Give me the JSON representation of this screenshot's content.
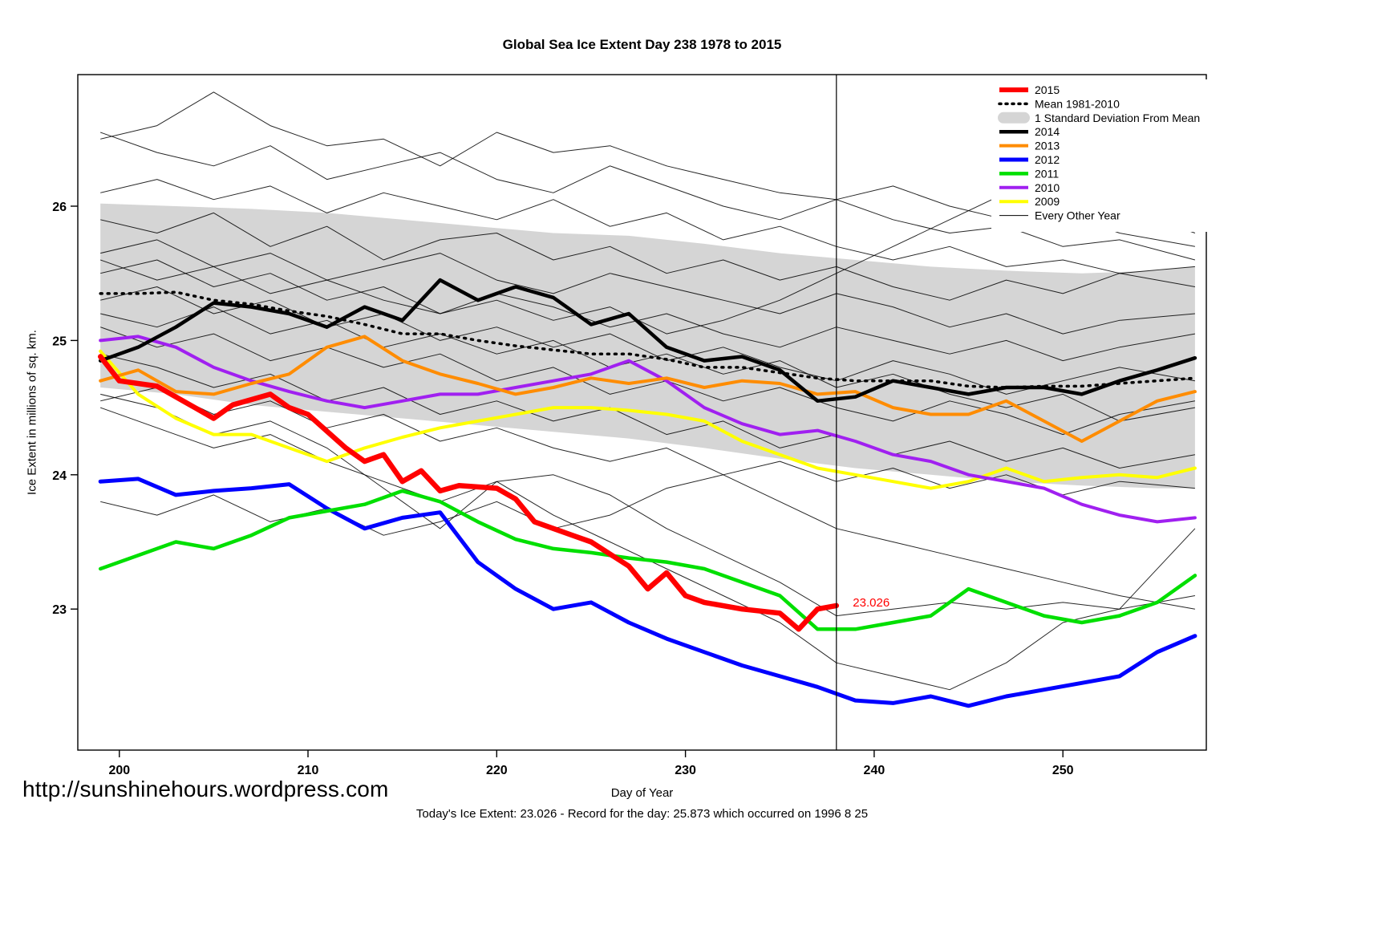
{
  "page": {
    "footer_url": "http://sunshinehours.wordpress.com",
    "footer_status": "Today's Ice Extent: 23.026  - Record for the day: 25.873 which occurred on 1996 8 25"
  },
  "chart_data": {
    "type": "line",
    "title": "Global Sea Ice Extent Day 238 1978 to 2015",
    "xlabel": "Day of Year",
    "ylabel": "Ice Extent in millions of sq. km.",
    "xlim": [
      197.8,
      257.6
    ],
    "ylim": [
      21.95,
      26.98
    ],
    "xticks": [
      200,
      210,
      220,
      230,
      240,
      250
    ],
    "yticks": [
      23,
      24,
      25,
      26
    ],
    "grid": false,
    "vline_x": 238,
    "annotation": {
      "x": 238.7,
      "y": 23.05,
      "label": "23.026",
      "color": "#FF0000"
    },
    "x": [
      199,
      201,
      203,
      205,
      207,
      209,
      211,
      213,
      215,
      217,
      219,
      221,
      223,
      225,
      227,
      229,
      231,
      233,
      235,
      237,
      239,
      241,
      243,
      245,
      247,
      249,
      251,
      253,
      255,
      257
    ],
    "band": {
      "label": "1 Standard Deviation From Mean",
      "color": "#D5D5D5",
      "x": [
        199,
        203,
        207,
        211,
        215,
        219,
        223,
        227,
        231,
        235,
        239,
        243,
        247,
        251,
        255,
        257
      ],
      "upper": [
        26.02,
        26.0,
        25.98,
        25.95,
        25.9,
        25.85,
        25.8,
        25.78,
        25.72,
        25.65,
        25.6,
        25.55,
        25.52,
        25.5,
        25.52,
        25.55
      ],
      "lower": [
        24.65,
        24.6,
        24.52,
        24.47,
        24.42,
        24.37,
        24.32,
        24.27,
        24.2,
        24.12,
        24.05,
        24.0,
        23.95,
        23.92,
        23.9,
        23.9
      ]
    },
    "series": [
      {
        "name": "Mean 1981-2010",
        "color": "#000000",
        "width": 3.5,
        "dash": "2 7",
        "values": [
          25.35,
          25.35,
          25.36,
          25.3,
          25.27,
          25.22,
          25.18,
          25.12,
          25.05,
          25.05,
          25.0,
          24.96,
          24.93,
          24.9,
          24.9,
          24.86,
          24.8,
          24.8,
          24.76,
          24.72,
          24.7,
          24.7,
          24.7,
          24.66,
          24.65,
          24.66,
          24.66,
          24.68,
          24.7,
          24.72
        ]
      },
      {
        "name": "2009",
        "color": "#FFFF00",
        "width": 4,
        "values": [
          24.92,
          24.6,
          24.42,
          24.3,
          24.3,
          24.2,
          24.1,
          24.2,
          24.28,
          24.35,
          24.4,
          24.45,
          24.5,
          24.5,
          24.48,
          24.45,
          24.4,
          24.25,
          24.15,
          24.05,
          24.0,
          23.95,
          23.9,
          23.95,
          24.05,
          23.95,
          23.98,
          24.0,
          23.98,
          24.05
        ]
      },
      {
        "name": "2010",
        "color": "#A020F0",
        "width": 4,
        "values": [
          25.0,
          25.03,
          24.95,
          24.8,
          24.7,
          24.62,
          24.55,
          24.5,
          24.55,
          24.6,
          24.6,
          24.65,
          24.7,
          24.75,
          24.85,
          24.7,
          24.5,
          24.38,
          24.3,
          24.33,
          24.25,
          24.15,
          24.1,
          24.0,
          23.95,
          23.9,
          23.78,
          23.7,
          23.65,
          23.68
        ]
      },
      {
        "name": "2013",
        "color": "#FF8C00",
        "width": 4,
        "values": [
          24.7,
          24.78,
          24.62,
          24.6,
          24.68,
          24.75,
          24.95,
          25.03,
          24.85,
          24.75,
          24.68,
          24.6,
          24.65,
          24.72,
          24.68,
          24.72,
          24.65,
          24.7,
          24.68,
          24.6,
          24.62,
          24.5,
          24.45,
          24.45,
          24.55,
          24.4,
          24.25,
          24.4,
          24.55,
          24.62
        ]
      },
      {
        "name": "2012",
        "color": "#0000FF",
        "width": 5,
        "values": [
          23.95,
          23.97,
          23.85,
          23.88,
          23.9,
          23.93,
          23.75,
          23.6,
          23.68,
          23.72,
          23.35,
          23.15,
          23.0,
          23.05,
          22.9,
          22.78,
          22.68,
          22.58,
          22.5,
          22.42,
          22.32,
          22.3,
          22.35,
          22.28,
          22.35,
          22.4,
          22.45,
          22.5,
          22.68,
          22.8
        ]
      },
      {
        "name": "2011",
        "color": "#00DF00",
        "width": 4.5,
        "values": [
          23.3,
          23.4,
          23.5,
          23.45,
          23.55,
          23.68,
          23.73,
          23.78,
          23.88,
          23.8,
          23.65,
          23.52,
          23.45,
          23.42,
          23.38,
          23.35,
          23.3,
          23.2,
          23.1,
          22.85,
          22.85,
          22.9,
          22.95,
          23.15,
          23.05,
          22.95,
          22.9,
          22.95,
          23.05,
          23.25
        ]
      },
      {
        "name": "2014",
        "color": "#000000",
        "width": 4.5,
        "values": [
          24.85,
          24.95,
          25.1,
          25.28,
          25.25,
          25.2,
          25.1,
          25.25,
          25.15,
          25.45,
          25.3,
          25.4,
          25.32,
          25.12,
          25.2,
          24.95,
          24.85,
          24.88,
          24.78,
          24.55,
          24.58,
          24.7,
          24.65,
          24.6,
          24.65,
          24.65,
          24.6,
          24.7,
          24.78,
          24.87
        ]
      },
      {
        "name": "2015",
        "color": "#FF0000",
        "width": 6.5,
        "x": [
          199,
          200,
          202,
          204,
          205,
          206,
          208,
          209,
          210,
          212,
          213,
          214,
          215,
          216,
          217,
          218,
          220,
          221,
          222,
          224,
          225,
          227,
          228,
          229,
          230,
          231,
          233,
          235,
          236,
          237,
          238
        ],
        "values": [
          24.88,
          24.7,
          24.66,
          24.5,
          24.42,
          24.52,
          24.6,
          24.5,
          24.45,
          24.2,
          24.1,
          24.15,
          23.95,
          24.03,
          23.88,
          23.92,
          23.9,
          23.82,
          23.65,
          23.55,
          23.5,
          23.32,
          23.15,
          23.27,
          23.1,
          23.05,
          23.0,
          22.97,
          22.85,
          23.0,
          23.026
        ]
      }
    ],
    "other_years": {
      "label": "Every Other Year",
      "color": "#000000",
      "width": 1,
      "x": [
        199,
        202,
        205,
        208,
        211,
        214,
        217,
        220,
        223,
        226,
        229,
        232,
        235,
        238,
        241,
        244,
        247,
        250,
        253,
        257
      ],
      "lines": [
        {
          "values": [
            26.5,
            26.6,
            26.85,
            26.6,
            26.45,
            26.5,
            26.3,
            26.55,
            26.4,
            26.45,
            26.3,
            26.2,
            26.1,
            26.05,
            26.15,
            26.0,
            25.9,
            25.95,
            25.8,
            25.7
          ]
        },
        {
          "values": [
            26.55,
            26.4,
            26.3,
            26.45,
            26.2,
            26.3,
            26.4,
            26.2,
            26.1,
            26.3,
            26.15,
            26.0,
            25.9,
            26.05,
            25.9,
            25.8,
            25.85,
            25.7,
            25.75,
            25.6
          ]
        },
        {
          "values": [
            26.1,
            26.2,
            26.05,
            26.15,
            25.95,
            26.1,
            26.0,
            25.9,
            26.05,
            25.85,
            25.95,
            25.75,
            25.85,
            25.7,
            25.6,
            25.7,
            25.55,
            25.6,
            25.5,
            25.55
          ]
        },
        {
          "values": [
            25.9,
            25.8,
            25.95,
            25.7,
            25.85,
            25.6,
            25.75,
            25.8,
            25.6,
            25.7,
            25.5,
            25.6,
            25.45,
            25.55,
            25.4,
            25.3,
            25.45,
            25.35,
            25.5,
            25.4
          ]
        },
        {
          "values": [
            25.65,
            25.75,
            25.55,
            25.65,
            25.45,
            25.55,
            25.65,
            25.45,
            25.35,
            25.5,
            25.4,
            25.3,
            25.2,
            25.35,
            25.25,
            25.1,
            25.2,
            25.05,
            25.15,
            25.2
          ]
        },
        {
          "values": [
            25.6,
            25.45,
            25.55,
            25.35,
            25.45,
            25.3,
            25.2,
            25.35,
            25.25,
            25.1,
            25.2,
            25.05,
            24.95,
            25.1,
            25.0,
            24.9,
            25.0,
            24.85,
            24.95,
            25.05
          ]
        },
        {
          "values": [
            25.3,
            25.4,
            25.2,
            25.3,
            25.1,
            25.2,
            25.0,
            25.1,
            24.95,
            25.05,
            24.85,
            24.95,
            24.8,
            24.7,
            24.85,
            24.75,
            24.6,
            24.7,
            24.8,
            24.7
          ]
        },
        {
          "values": [
            25.1,
            24.95,
            25.05,
            24.85,
            24.95,
            24.8,
            24.9,
            24.7,
            24.8,
            24.6,
            24.7,
            24.55,
            24.65,
            24.5,
            24.4,
            24.55,
            24.45,
            24.3,
            24.45,
            24.55
          ]
        },
        {
          "values": [
            24.9,
            24.8,
            24.65,
            24.75,
            24.55,
            24.65,
            24.45,
            24.55,
            24.4,
            24.5,
            24.3,
            24.4,
            24.2,
            24.3,
            24.15,
            24.25,
            24.1,
            24.2,
            24.05,
            24.15
          ]
        },
        {
          "values": [
            24.55,
            24.65,
            24.45,
            24.55,
            24.35,
            24.45,
            24.25,
            24.35,
            24.2,
            24.1,
            24.2,
            24.0,
            24.1,
            23.95,
            24.05,
            23.9,
            24.0,
            23.85,
            23.95,
            23.9
          ]
        },
        {
          "values": [
            24.5,
            24.35,
            24.2,
            24.3,
            24.1,
            23.95,
            23.8,
            23.95,
            24.0,
            23.85,
            23.6,
            23.4,
            23.2,
            22.95,
            23.0,
            23.05,
            23.0,
            23.05,
            23.0,
            23.6
          ]
        },
        {
          "values": [
            24.6,
            24.5,
            24.3,
            24.4,
            24.2,
            23.9,
            23.6,
            23.95,
            23.7,
            23.5,
            23.3,
            23.1,
            22.9,
            22.6,
            22.5,
            22.4,
            22.6,
            22.9,
            23.0,
            23.1
          ]
        },
        {
          "values": [
            25.5,
            25.6,
            25.4,
            25.5,
            25.3,
            25.4,
            25.2,
            25.3,
            25.15,
            25.25,
            25.05,
            25.15,
            25.3,
            25.5,
            25.7,
            25.9,
            26.1,
            26.3,
            26.0,
            25.8
          ]
        },
        {
          "values": [
            25.2,
            25.1,
            25.25,
            25.05,
            25.15,
            24.95,
            25.05,
            24.9,
            25.0,
            24.8,
            24.9,
            24.75,
            24.85,
            24.65,
            24.75,
            24.6,
            24.5,
            24.6,
            24.4,
            24.5
          ]
        },
        {
          "values": [
            23.8,
            23.7,
            23.85,
            23.65,
            23.75,
            23.55,
            23.65,
            23.8,
            23.6,
            23.7,
            23.9,
            24.0,
            23.8,
            23.6,
            23.5,
            23.4,
            23.3,
            23.2,
            23.1,
            23.0
          ]
        }
      ]
    },
    "legend": {
      "position": "top-right",
      "entries": [
        {
          "label": "2015",
          "type": "line",
          "color": "#FF0000",
          "width": 6
        },
        {
          "label": "Mean 1981-2010",
          "type": "dashed",
          "color": "#000000",
          "width": 3.5
        },
        {
          "label": "1 Standard Deviation From Mean",
          "type": "band",
          "color": "#D5D5D5"
        },
        {
          "label": "2014",
          "type": "line",
          "color": "#000000",
          "width": 4.5
        },
        {
          "label": "2013",
          "type": "line",
          "color": "#FF8C00",
          "width": 4
        },
        {
          "label": "2012",
          "type": "line",
          "color": "#0000FF",
          "width": 5
        },
        {
          "label": "2011",
          "type": "line",
          "color": "#00DF00",
          "width": 4.5
        },
        {
          "label": "2010",
          "type": "line",
          "color": "#A020F0",
          "width": 4
        },
        {
          "label": "2009",
          "type": "line",
          "color": "#FFFF00",
          "width": 4
        },
        {
          "label": "Every Other Year",
          "type": "line",
          "color": "#000000",
          "width": 1
        }
      ]
    }
  }
}
